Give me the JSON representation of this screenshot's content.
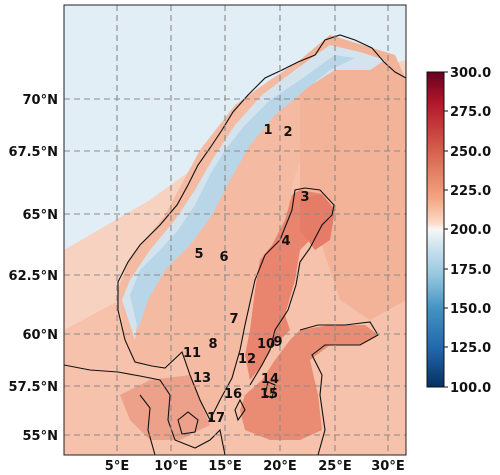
{
  "map": {
    "lat_labels": [
      "70°N",
      "67.5°N",
      "65°N",
      "62.5°N",
      "60°N",
      "57.5°N",
      "55°N"
    ],
    "lon_labels": [
      "5°E",
      "10°E",
      "15°E",
      "20°E",
      "25°E",
      "30°E"
    ],
    "stations": [
      "1",
      "2",
      "3",
      "4",
      "5",
      "6",
      "7",
      "8",
      "9",
      "10",
      "11",
      "12",
      "13",
      "14",
      "15",
      "16",
      "17"
    ]
  },
  "colorbar": {
    "labels": [
      "300.0",
      "275.0",
      "250.0",
      "225.0",
      "200.0",
      "175.0",
      "150.0",
      "125.0",
      "100.0"
    ],
    "colors": [
      "#67001f",
      "#b2182b",
      "#d6604d",
      "#f4a582",
      "#fddbc7",
      "#f7f7f7",
      "#d1e5f0",
      "#92c5de",
      "#4393c3",
      "#2166ac",
      "#053061"
    ]
  }
}
